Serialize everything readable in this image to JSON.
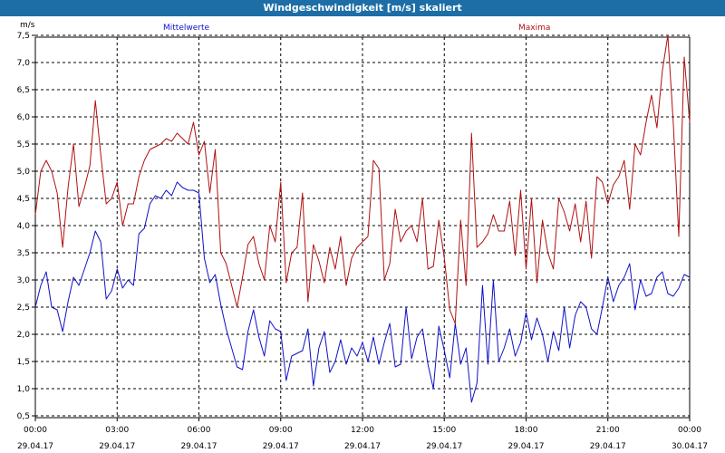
{
  "window": {
    "title": "Windgeschwindigkeit [m/s] skaliert"
  },
  "chart_data": {
    "type": "line",
    "title": "Windgeschwindigkeit [m/s] skaliert",
    "ylabel": "m/s",
    "ylim": [
      0.5,
      7.5
    ],
    "yticks": [
      0.5,
      1.0,
      1.5,
      2.0,
      2.5,
      3.0,
      3.5,
      4.0,
      4.5,
      5.0,
      5.5,
      6.0,
      6.5,
      7.0,
      7.5
    ],
    "ytick_labels": [
      "0,5",
      "1,0",
      "1,5",
      "2,0",
      "2,5",
      "3,0",
      "3,5",
      "4,0",
      "4,5",
      "5,0",
      "5,5",
      "6,0",
      "6,5",
      "7,0",
      "7,5"
    ],
    "xlim": [
      0,
      24
    ],
    "x_unit": "hours since 29.04.17 00:00",
    "xticks": [
      0,
      3,
      6,
      9,
      12,
      15,
      18,
      21,
      24
    ],
    "xtick_times": [
      "00:00",
      "03:00",
      "06:00",
      "09:00",
      "12:00",
      "15:00",
      "18:00",
      "21:00",
      "00:00"
    ],
    "xtick_dates": [
      "29.04.17",
      "29.04.17",
      "29.04.17",
      "29.04.17",
      "29.04.17",
      "29.04.17",
      "29.04.17",
      "29.04.17",
      "30.04.17"
    ],
    "grid": true,
    "series": [
      {
        "name": "Mittelwerte",
        "color": "#1010c8",
        "x": [
          0.0,
          0.2,
          0.4,
          0.6,
          0.8,
          1.0,
          1.2,
          1.4,
          1.6,
          1.8,
          2.0,
          2.2,
          2.4,
          2.6,
          2.8,
          3.0,
          3.2,
          3.4,
          3.6,
          3.8,
          4.0,
          4.2,
          4.4,
          4.6,
          4.8,
          5.0,
          5.2,
          5.4,
          5.6,
          5.8,
          6.0,
          6.2,
          6.4,
          6.6,
          6.8,
          7.0,
          7.2,
          7.4,
          7.6,
          7.8,
          8.0,
          8.2,
          8.4,
          8.6,
          8.8,
          9.0,
          9.2,
          9.4,
          9.6,
          9.8,
          10.0,
          10.2,
          10.4,
          10.6,
          10.8,
          11.0,
          11.2,
          11.4,
          11.6,
          11.8,
          12.0,
          12.2,
          12.4,
          12.6,
          12.8,
          13.0,
          13.2,
          13.4,
          13.6,
          13.8,
          14.0,
          14.2,
          14.4,
          14.6,
          14.8,
          15.0,
          15.2,
          15.4,
          15.6,
          15.8,
          16.0,
          16.2,
          16.4,
          16.6,
          16.8,
          17.0,
          17.2,
          17.4,
          17.6,
          17.8,
          18.0,
          18.2,
          18.4,
          18.6,
          18.8,
          19.0,
          19.2,
          19.4,
          19.6,
          19.8,
          20.0,
          20.2,
          20.4,
          20.6,
          20.8,
          21.0,
          21.2,
          21.4,
          21.6,
          21.8,
          22.0,
          22.2,
          22.4,
          22.6,
          22.8,
          23.0,
          23.2,
          23.4,
          23.6,
          23.8,
          24.0
        ],
        "values": [
          2.5,
          2.9,
          3.15,
          2.5,
          2.45,
          2.05,
          2.6,
          3.05,
          2.9,
          3.2,
          3.5,
          3.9,
          3.7,
          2.65,
          2.8,
          3.2,
          2.85,
          3.0,
          2.9,
          3.85,
          3.95,
          4.4,
          4.55,
          4.5,
          4.65,
          4.55,
          4.8,
          4.7,
          4.65,
          4.65,
          4.6,
          3.4,
          2.95,
          3.1,
          2.55,
          2.1,
          1.75,
          1.4,
          1.35,
          2.05,
          2.45,
          1.95,
          1.6,
          2.25,
          2.1,
          2.05,
          1.15,
          1.6,
          1.65,
          1.7,
          2.1,
          1.05,
          1.75,
          2.05,
          1.3,
          1.5,
          1.9,
          1.45,
          1.75,
          1.6,
          1.85,
          1.5,
          1.95,
          1.45,
          1.85,
          2.2,
          1.4,
          1.45,
          2.5,
          1.55,
          1.95,
          2.1,
          1.45,
          1.0,
          2.15,
          1.7,
          1.2,
          2.2,
          1.45,
          1.75,
          0.75,
          1.1,
          2.9,
          1.45,
          3.0,
          1.5,
          1.75,
          2.1,
          1.6,
          1.85,
          2.4,
          1.9,
          2.3,
          2.0,
          1.5,
          2.05,
          1.7,
          2.5,
          1.75,
          2.35,
          2.6,
          2.5,
          2.1,
          2.0,
          2.5,
          3.05,
          2.6,
          2.9,
          3.05,
          3.3,
          2.45,
          3.0,
          2.7,
          2.75,
          3.05,
          3.15,
          2.75,
          2.7,
          2.85,
          3.1,
          3.05
        ]
      },
      {
        "name": "Maxima",
        "color": "#b01010",
        "x": [
          0.0,
          0.2,
          0.4,
          0.6,
          0.8,
          1.0,
          1.2,
          1.4,
          1.6,
          1.8,
          2.0,
          2.2,
          2.4,
          2.6,
          2.8,
          3.0,
          3.2,
          3.4,
          3.6,
          3.8,
          4.0,
          4.2,
          4.4,
          4.6,
          4.8,
          5.0,
          5.2,
          5.4,
          5.6,
          5.8,
          6.0,
          6.2,
          6.4,
          6.6,
          6.8,
          7.0,
          7.2,
          7.4,
          7.6,
          7.8,
          8.0,
          8.2,
          8.4,
          8.6,
          8.8,
          9.0,
          9.2,
          9.4,
          9.6,
          9.8,
          10.0,
          10.2,
          10.4,
          10.6,
          10.8,
          11.0,
          11.2,
          11.4,
          11.6,
          11.8,
          12.0,
          12.2,
          12.4,
          12.6,
          12.8,
          13.0,
          13.2,
          13.4,
          13.6,
          13.8,
          14.0,
          14.2,
          14.4,
          14.6,
          14.8,
          15.0,
          15.2,
          15.4,
          15.6,
          15.8,
          16.0,
          16.2,
          16.4,
          16.6,
          16.8,
          17.0,
          17.2,
          17.4,
          17.6,
          17.8,
          18.0,
          18.2,
          18.4,
          18.6,
          18.8,
          19.0,
          19.2,
          19.4,
          19.6,
          19.8,
          20.0,
          20.2,
          20.4,
          20.6,
          20.8,
          21.0,
          21.2,
          21.4,
          21.6,
          21.8,
          22.0,
          22.2,
          22.4,
          22.6,
          22.8,
          23.0,
          23.2,
          23.4,
          23.6,
          23.8,
          24.0
        ],
        "values": [
          4.2,
          5.0,
          5.2,
          5.0,
          4.6,
          3.6,
          4.7,
          5.5,
          4.35,
          4.7,
          5.1,
          6.3,
          5.3,
          4.4,
          4.5,
          4.8,
          4.0,
          4.4,
          4.4,
          4.9,
          5.2,
          5.4,
          5.45,
          5.5,
          5.6,
          5.55,
          5.7,
          5.6,
          5.5,
          5.9,
          5.3,
          5.55,
          4.6,
          5.4,
          3.5,
          3.3,
          2.9,
          2.5,
          3.05,
          3.65,
          3.8,
          3.3,
          3.0,
          4.0,
          3.7,
          4.8,
          2.95,
          3.5,
          3.6,
          4.6,
          2.6,
          3.65,
          3.35,
          2.95,
          3.6,
          3.2,
          3.8,
          2.9,
          3.4,
          3.6,
          3.7,
          3.8,
          5.2,
          5.05,
          3.0,
          3.3,
          4.3,
          3.7,
          3.9,
          4.0,
          3.7,
          4.5,
          3.2,
          3.25,
          4.1,
          3.4,
          2.45,
          2.2,
          4.1,
          2.9,
          5.7,
          3.6,
          3.7,
          3.85,
          4.2,
          3.9,
          3.9,
          4.45,
          3.45,
          4.65,
          3.2,
          4.5,
          2.95,
          4.1,
          3.5,
          3.2,
          4.5,
          4.25,
          3.9,
          4.4,
          3.7,
          4.45,
          3.4,
          4.9,
          4.8,
          4.4,
          4.75,
          4.9,
          5.2,
          4.3,
          5.5,
          5.3,
          5.9,
          6.4,
          5.8,
          6.85,
          7.5,
          5.9,
          3.8,
          7.1,
          5.9
        ]
      }
    ]
  }
}
